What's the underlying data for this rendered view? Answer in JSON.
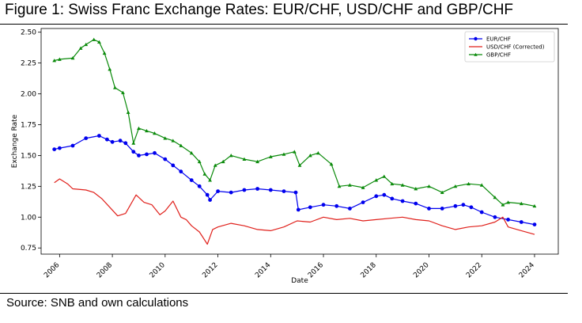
{
  "figure": {
    "title": "Figure 1: Swiss Franc Exchange Rates: EUR/CHF, USD/CHF and GBP/CHF",
    "source": "Source: SNB and own calculations"
  },
  "chart_data": {
    "type": "line",
    "title": "",
    "xlabel": "Date",
    "ylabel": "Exchange Rate",
    "xlim": [
      2005.3,
      2024.9
    ],
    "ylim": [
      0.7,
      2.53
    ],
    "x_ticks": [
      2006,
      2008,
      2010,
      2012,
      2014,
      2016,
      2018,
      2020,
      2022,
      2024
    ],
    "x_tick_labels": [
      "2006",
      "2008",
      "2010",
      "2012",
      "2014",
      "2016",
      "2018",
      "2020",
      "2022",
      "2024"
    ],
    "y_ticks": [
      0.75,
      1.0,
      1.25,
      1.5,
      1.75,
      2.0,
      2.25,
      2.5
    ],
    "y_tick_labels": [
      "0.75",
      "1.00",
      "1.25",
      "1.50",
      "1.75",
      "2.00",
      "2.25",
      "2.50"
    ],
    "grid": false,
    "legend_position": "top-right",
    "series": [
      {
        "name": "EUR/CHF",
        "color": "#0000ee",
        "marker": "circle",
        "x": [
          2005.8,
          2006.0,
          2006.5,
          2007.0,
          2007.5,
          2007.8,
          2008.0,
          2008.3,
          2008.5,
          2008.8,
          2009.0,
          2009.3,
          2009.6,
          2010.0,
          2010.3,
          2010.6,
          2011.0,
          2011.3,
          2011.6,
          2011.7,
          2012.0,
          2012.5,
          2013.0,
          2013.5,
          2014.0,
          2014.5,
          2014.95,
          2015.05,
          2015.5,
          2016.0,
          2016.5,
          2017.0,
          2017.5,
          2018.0,
          2018.3,
          2018.6,
          2019.0,
          2019.5,
          2020.0,
          2020.5,
          2021.0,
          2021.3,
          2021.6,
          2022.0,
          2022.5,
          2023.0,
          2023.5,
          2024.0
        ],
        "y": [
          1.55,
          1.56,
          1.58,
          1.64,
          1.66,
          1.63,
          1.61,
          1.62,
          1.6,
          1.53,
          1.5,
          1.51,
          1.52,
          1.47,
          1.42,
          1.37,
          1.3,
          1.25,
          1.18,
          1.14,
          1.21,
          1.2,
          1.22,
          1.23,
          1.22,
          1.21,
          1.2,
          1.06,
          1.08,
          1.1,
          1.09,
          1.07,
          1.12,
          1.17,
          1.18,
          1.15,
          1.13,
          1.11,
          1.07,
          1.07,
          1.09,
          1.1,
          1.08,
          1.04,
          1.0,
          0.98,
          0.96,
          0.94
        ]
      },
      {
        "name": "USD/CHF (Corrected)",
        "color": "#e0201b",
        "marker": "none",
        "x": [
          2005.8,
          2006.0,
          2006.3,
          2006.5,
          2007.0,
          2007.3,
          2007.6,
          2007.9,
          2008.2,
          2008.5,
          2008.9,
          2009.2,
          2009.5,
          2009.8,
          2010.0,
          2010.3,
          2010.6,
          2010.8,
          2011.0,
          2011.3,
          2011.6,
          2011.8,
          2012.0,
          2012.5,
          2013.0,
          2013.5,
          2014.0,
          2014.5,
          2015.0,
          2015.5,
          2016.0,
          2016.5,
          2017.0,
          2017.5,
          2018.0,
          2018.5,
          2019.0,
          2019.5,
          2020.0,
          2020.5,
          2021.0,
          2021.5,
          2022.0,
          2022.5,
          2022.8,
          2023.0,
          2023.5,
          2024.0
        ],
        "y": [
          1.28,
          1.31,
          1.27,
          1.23,
          1.22,
          1.2,
          1.15,
          1.08,
          1.01,
          1.03,
          1.18,
          1.12,
          1.1,
          1.02,
          1.05,
          1.13,
          1.0,
          0.98,
          0.93,
          0.88,
          0.78,
          0.9,
          0.92,
          0.95,
          0.93,
          0.9,
          0.89,
          0.92,
          0.97,
          0.96,
          1.0,
          0.98,
          0.99,
          0.97,
          0.98,
          0.99,
          1.0,
          0.98,
          0.97,
          0.93,
          0.9,
          0.92,
          0.93,
          0.96,
          1.0,
          0.92,
          0.89,
          0.86
        ]
      },
      {
        "name": "GBP/CHF",
        "color": "#0a8a0a",
        "marker": "triangle",
        "x": [
          2005.8,
          2006.0,
          2006.5,
          2006.8,
          2007.0,
          2007.3,
          2007.5,
          2007.7,
          2007.9,
          2008.1,
          2008.4,
          2008.6,
          2008.8,
          2009.0,
          2009.3,
          2009.6,
          2010.0,
          2010.3,
          2010.6,
          2011.0,
          2011.3,
          2011.5,
          2011.7,
          2011.9,
          2012.2,
          2012.5,
          2013.0,
          2013.5,
          2014.0,
          2014.5,
          2014.9,
          2015.1,
          2015.5,
          2015.8,
          2016.3,
          2016.6,
          2017.0,
          2017.5,
          2018.0,
          2018.3,
          2018.6,
          2019.0,
          2019.5,
          2020.0,
          2020.5,
          2021.0,
          2021.5,
          2022.0,
          2022.5,
          2022.8,
          2023.0,
          2023.5,
          2024.0
        ],
        "y": [
          2.27,
          2.28,
          2.29,
          2.37,
          2.4,
          2.44,
          2.42,
          2.33,
          2.2,
          2.05,
          2.01,
          1.85,
          1.6,
          1.72,
          1.7,
          1.68,
          1.64,
          1.62,
          1.58,
          1.52,
          1.45,
          1.35,
          1.3,
          1.42,
          1.45,
          1.5,
          1.47,
          1.45,
          1.49,
          1.51,
          1.53,
          1.42,
          1.5,
          1.52,
          1.43,
          1.25,
          1.26,
          1.24,
          1.3,
          1.33,
          1.27,
          1.26,
          1.23,
          1.25,
          1.2,
          1.25,
          1.27,
          1.26,
          1.16,
          1.1,
          1.12,
          1.11,
          1.09
        ]
      }
    ]
  }
}
